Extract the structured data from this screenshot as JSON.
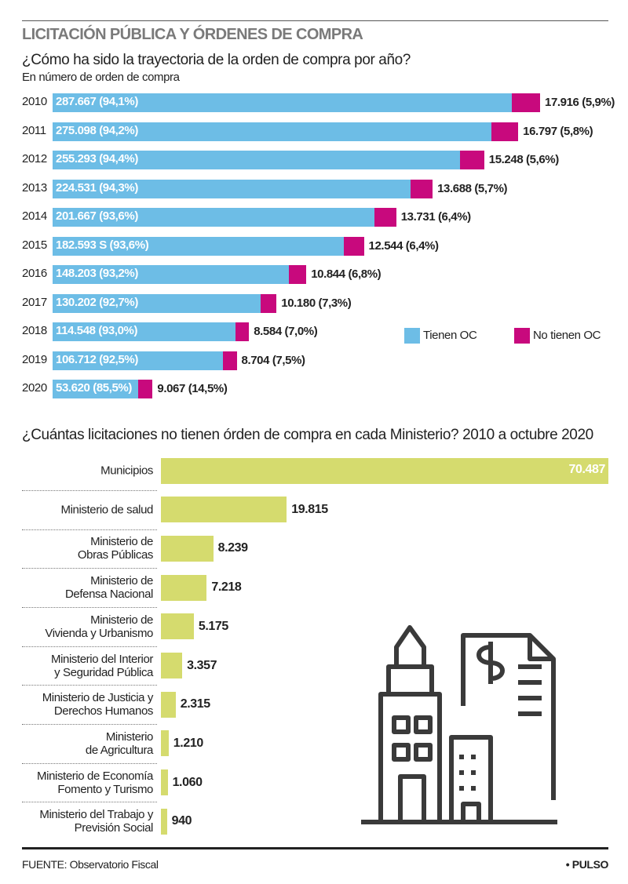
{
  "header": {
    "title": "LICITACIÓN PÚBLICA Y ÓRDENES DE COMPRA"
  },
  "chart_data": [
    {
      "type": "stacked-bar",
      "orientation": "horizontal",
      "title": "¿Cómo ha sido la trayectoria de la orden de compra por año?",
      "subtitle": "En número de orden de compra",
      "categories": [
        "2010",
        "2011",
        "2012",
        "2013",
        "2014",
        "2015",
        "2016",
        "2017",
        "2018",
        "2019",
        "2020"
      ],
      "legend": "right",
      "series": [
        {
          "name": "Tienen OC",
          "color": "#6dbde6",
          "values": [
            287667,
            275098,
            255293,
            224531,
            201667,
            182593,
            148203,
            130202,
            114548,
            106712,
            53620
          ],
          "value_labels": [
            "287.667 (94,1%)",
            "275.098 (94,2%)",
            "255.293 (94,4%)",
            "224.531 (94,3%)",
            "201.667 (93,6%)",
            "182.593 S (93,6%)",
            "148.203 (93,2%)",
            "130.202 (92,7%)",
            "114.548 (93,0%)",
            "106.712 (92,5%)",
            "53.620 (85,5%)"
          ]
        },
        {
          "name": "No tienen OC",
          "color": "#c8097d",
          "values": [
            17916,
            16797,
            15248,
            13688,
            13731,
            12544,
            10844,
            10180,
            8584,
            8704,
            9067
          ],
          "value_labels": [
            "17.916 (5,9%)",
            "16.797 (5,8%)",
            "15.248 (5,6%)",
            "13.688 (5,7%)",
            "13.731 (6,4%)",
            "12.544 (6,4%)",
            "10.844 (6,8%)",
            "10.180 (7,3%)",
            "8.584 (7,0%)",
            "8.704 (7,5%)",
            "9.067 (14,5%)"
          ]
        }
      ]
    },
    {
      "type": "bar",
      "orientation": "horizontal",
      "title": "¿Cuántas licitaciones no tienen órden de compra en cada Ministerio? 2010 a octubre 2020",
      "categories": [
        "Municipios",
        "Ministerio de salud",
        "Ministerio de\nObras Públicas",
        "Ministerio de\nDefensa Nacional",
        "Ministerio de\nVivienda y Urbanismo",
        "Ministerio del Interior\ny Seguridad Pública",
        "Ministerio de Justicia y\nDerechos Humanos",
        "Ministerio\nde Agricultura",
        "Ministerio de Economía\nFomento y Turismo",
        "Ministerio del Trabajo y\nPrevisión Social"
      ],
      "color": "#d5db6e",
      "values": [
        70487,
        19815,
        8239,
        7218,
        5175,
        3357,
        2315,
        1210,
        1060,
        940
      ],
      "value_labels": [
        "70.487",
        "19.815",
        "8.239",
        "7.218",
        "5.175",
        "3.357",
        "2.315",
        "1.210",
        "1.060",
        "940"
      ]
    }
  ],
  "footer": {
    "source": "FUENTE: Observatorio Fiscal",
    "brand": "• PULSO"
  }
}
